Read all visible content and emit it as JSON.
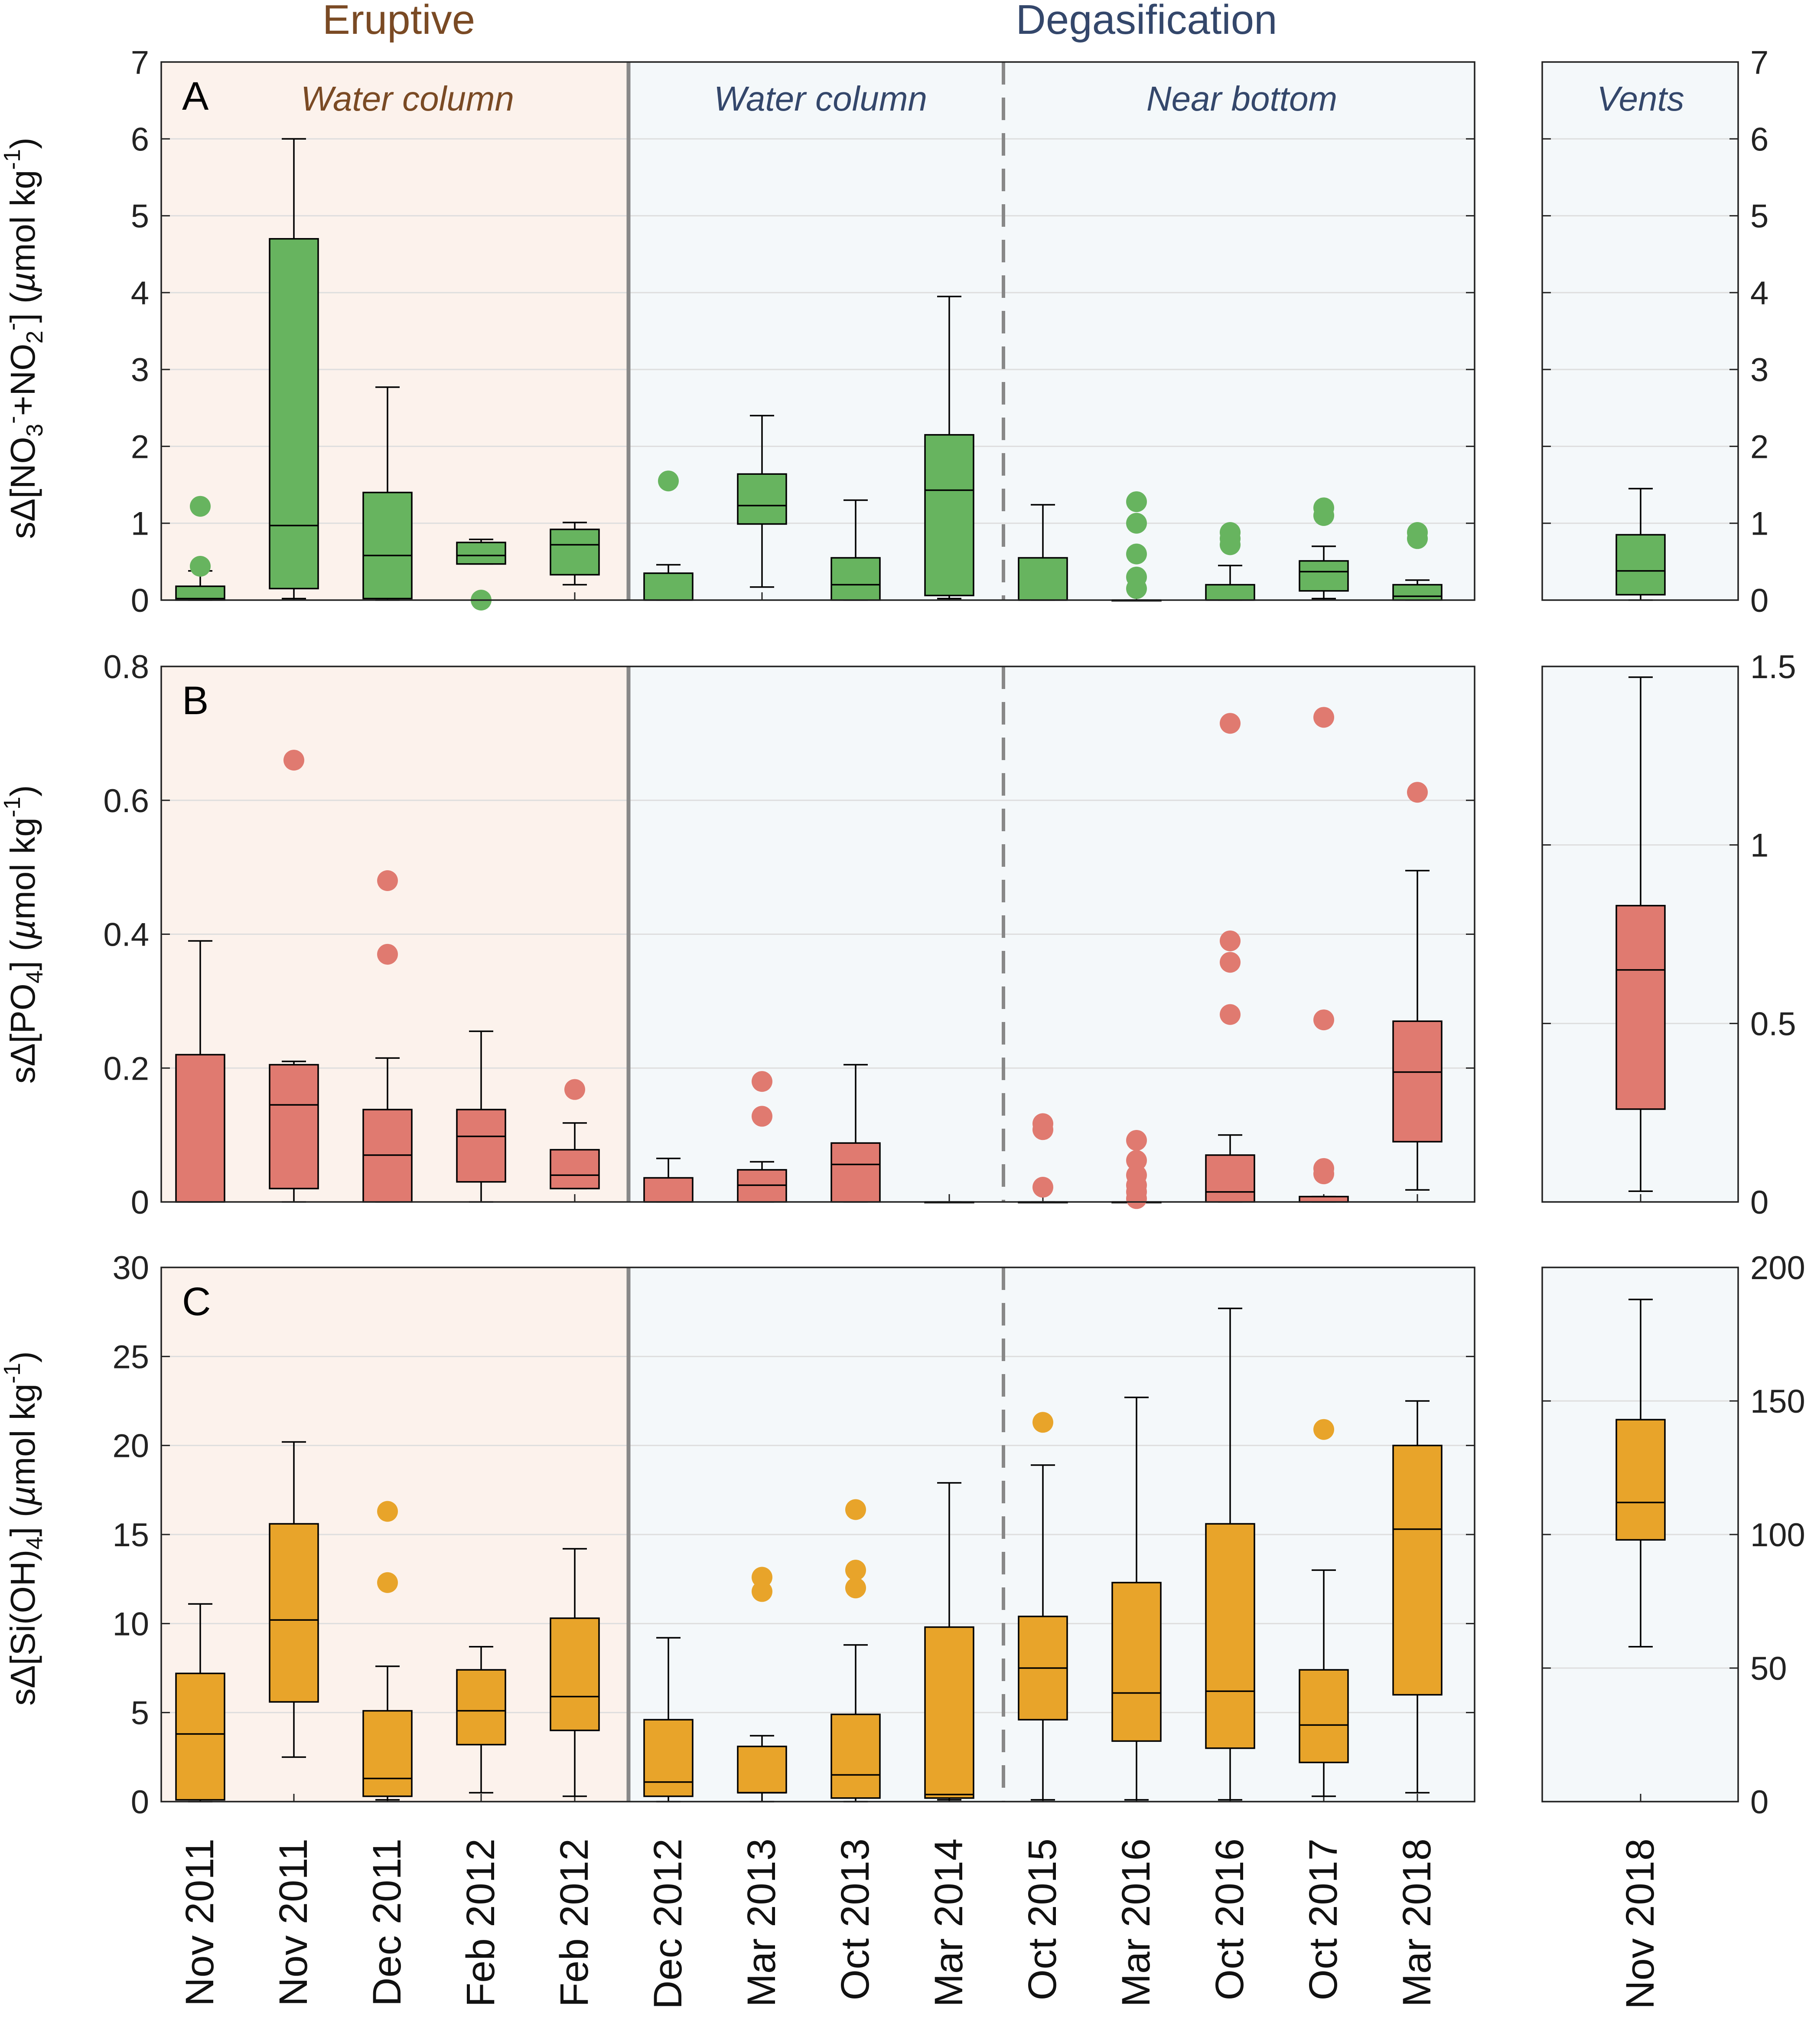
{
  "colors": {
    "eruptive_bg": "#fcf2ec",
    "degas_bg": "#f4f8fa",
    "eruptive_text": "#7a4a24",
    "degas_text": "#34476b",
    "nitrate": "#67b45f",
    "phosphate": "#e07a70",
    "silicate": "#e8a42a",
    "grid": "#dedede",
    "axis": "#222222",
    "divider": "#888888"
  },
  "headers": {
    "eruptive": "Eruptive",
    "degasification": "Degasification"
  },
  "regions": {
    "water_column_eruptive": "Water column",
    "water_column_degas": "Water column",
    "near_bottom": "Near bottom",
    "vents": "Vents"
  },
  "categories": [
    "Nov 2011",
    "Nov 2011",
    "Dec 2011",
    "Feb 2012",
    "Feb 2012",
    "Dec 2012",
    "Mar 2013",
    "Oct 2013",
    "Mar 2014",
    "Oct 2015",
    "Mar 2016",
    "Oct 2016",
    "Oct 2017",
    "Mar 2018"
  ],
  "vent_category": "Nov 2018",
  "chart_data": [
    {
      "type": "box",
      "panel": "A",
      "ylabel": "sΔ[NO3⁻+NO2⁻] (µmol kg⁻¹)",
      "ylabel_parts": {
        "a": "sΔ[NO",
        "b": "3",
        "c": "-",
        "d": "+NO",
        "e": "2",
        "f": "-",
        "g": "] (",
        "h": "µ",
        "i": "mol kg",
        "j": "-1",
        "k": ")"
      },
      "ylim": [
        0,
        7
      ],
      "ticks": [
        0,
        1,
        2,
        3,
        4,
        5,
        6,
        7
      ],
      "tick_labels": [
        "0",
        "1",
        "2",
        "3",
        "4",
        "5",
        "6",
        "7"
      ],
      "boxes": [
        {
          "category": "Nov 2011",
          "min": 0,
          "q1": 0,
          "median": 0.02,
          "q3": 0.18,
          "max": 0.38,
          "outliers": [
            0.44,
            1.22
          ]
        },
        {
          "category": "Nov 2011",
          "min": 0.02,
          "q1": 0.15,
          "median": 0.97,
          "q3": 4.7,
          "max": 6.0,
          "outliers": []
        },
        {
          "category": "Dec 2011",
          "min": 0,
          "q1": 0.02,
          "median": 0.58,
          "q3": 1.4,
          "max": 2.77,
          "outliers": []
        },
        {
          "category": "Feb 2012",
          "min": 0.47,
          "q1": 0.47,
          "median": 0.58,
          "q3": 0.75,
          "max": 0.79,
          "outliers": [
            0.0
          ]
        },
        {
          "category": "Feb 2012",
          "min": 0.2,
          "q1": 0.33,
          "median": 0.72,
          "q3": 0.92,
          "max": 1.01,
          "outliers": []
        },
        {
          "category": "Dec 2012",
          "min": 0,
          "q1": 0,
          "median": 0,
          "q3": 0.35,
          "max": 0.46,
          "outliers": [
            1.55
          ]
        },
        {
          "category": "Mar 2013",
          "min": 0.17,
          "q1": 0.99,
          "median": 1.23,
          "q3": 1.64,
          "max": 2.4,
          "outliers": []
        },
        {
          "category": "Oct 2013",
          "min": 0,
          "q1": 0,
          "median": 0.2,
          "q3": 0.55,
          "max": 1.3,
          "outliers": []
        },
        {
          "category": "Mar 2014",
          "min": 0.02,
          "q1": 0.06,
          "median": 1.43,
          "q3": 2.15,
          "max": 3.95,
          "outliers": []
        },
        {
          "category": "Oct 2015",
          "min": 0,
          "q1": 0,
          "median": 0,
          "q3": 0.55,
          "max": 1.24,
          "outliers": []
        },
        {
          "category": "Mar 2016",
          "min": 0,
          "q1": 0,
          "median": 0,
          "q3": 0,
          "max": 0,
          "outliers": [
            0.15,
            0.3,
            0.6,
            1.0,
            1.28
          ]
        },
        {
          "category": "Oct 2016",
          "min": 0,
          "q1": 0,
          "median": 0,
          "q3": 0.2,
          "max": 0.45,
          "outliers": [
            0.72,
            0.8,
            0.88
          ]
        },
        {
          "category": "Oct 2017",
          "min": 0.02,
          "q1": 0.12,
          "median": 0.37,
          "q3": 0.51,
          "max": 0.7,
          "outliers": [
            1.1,
            1.2
          ]
        },
        {
          "category": "Mar 2018",
          "min": 0,
          "q1": 0,
          "median": 0.05,
          "q3": 0.2,
          "max": 0.26,
          "outliers": [
            0.8,
            0.88
          ]
        }
      ],
      "vent": {
        "ylim": [
          0,
          7
        ],
        "ticks": [
          0,
          1,
          2,
          3,
          4,
          5,
          6,
          7
        ],
        "tick_labels": [
          "0",
          "1",
          "2",
          "3",
          "4",
          "5",
          "6",
          "7"
        ],
        "box": {
          "category": "Nov 2018",
          "min": 0,
          "q1": 0.07,
          "median": 0.38,
          "q3": 0.85,
          "max": 1.45,
          "outliers": []
        }
      }
    },
    {
      "type": "box",
      "panel": "B",
      "ylabel": "sΔ[PO4] (µmol kg⁻¹)",
      "ylabel_parts": {
        "a": "sΔ[PO",
        "b": "4",
        "c": "] (",
        "d": "µ",
        "e": "mol kg",
        "f": "-1",
        "g": ")"
      },
      "ylim": [
        0,
        0.8
      ],
      "ticks": [
        0,
        0.2,
        0.4,
        0.6,
        0.8
      ],
      "tick_labels": [
        "0",
        "0.2",
        "0.4",
        "0.6",
        "0.8"
      ],
      "boxes": [
        {
          "category": "Nov 2011",
          "min": 0,
          "q1": 0,
          "median": 0,
          "q3": 0.22,
          "max": 0.39,
          "outliers": []
        },
        {
          "category": "Nov 2011",
          "min": 0,
          "q1": 0.02,
          "median": 0.145,
          "q3": 0.205,
          "max": 0.21,
          "outliers": [
            0.66
          ]
        },
        {
          "category": "Dec 2011",
          "min": 0,
          "q1": 0,
          "median": 0.07,
          "q3": 0.138,
          "max": 0.215,
          "outliers": [
            0.37,
            0.48
          ]
        },
        {
          "category": "Feb 2012",
          "min": 0,
          "q1": 0.03,
          "median": 0.098,
          "q3": 0.138,
          "max": 0.255,
          "outliers": []
        },
        {
          "category": "Feb 2012",
          "min": 0.02,
          "q1": 0.02,
          "median": 0.04,
          "q3": 0.078,
          "max": 0.118,
          "outliers": [
            0.168
          ]
        },
        {
          "category": "Dec 2012",
          "min": 0,
          "q1": 0,
          "median": 0,
          "q3": 0.036,
          "max": 0.065,
          "outliers": []
        },
        {
          "category": "Mar 2013",
          "min": 0,
          "q1": 0,
          "median": 0.025,
          "q3": 0.048,
          "max": 0.06,
          "outliers": [
            0.128,
            0.18
          ]
        },
        {
          "category": "Oct 2013",
          "min": 0,
          "q1": 0,
          "median": 0.056,
          "q3": 0.088,
          "max": 0.205,
          "outliers": []
        },
        {
          "category": "Mar 2014",
          "min": 0,
          "q1": 0,
          "median": 0,
          "q3": 0,
          "max": 0,
          "outliers": []
        },
        {
          "category": "Oct 2015",
          "min": 0,
          "q1": 0,
          "median": 0,
          "q3": 0,
          "max": 0,
          "outliers": [
            0.022,
            0.108,
            0.117
          ]
        },
        {
          "category": "Mar 2016",
          "min": 0,
          "q1": 0,
          "median": 0,
          "q3": 0,
          "max": 0,
          "outliers": [
            0.005,
            0.015,
            0.025,
            0.04,
            0.062,
            0.092
          ]
        },
        {
          "category": "Oct 2016",
          "min": 0,
          "q1": 0,
          "median": 0.015,
          "q3": 0.07,
          "max": 0.1,
          "outliers": [
            0.28,
            0.358,
            0.39,
            0.715
          ]
        },
        {
          "category": "Oct 2017",
          "min": 0,
          "q1": 0,
          "median": 0,
          "q3": 0.008,
          "max": 0.008,
          "outliers": [
            0.042,
            0.05,
            0.272,
            0.724
          ]
        },
        {
          "category": "Mar 2018",
          "min": 0.018,
          "q1": 0.09,
          "median": 0.194,
          "q3": 0.27,
          "max": 0.495,
          "outliers": [
            0.612
          ]
        }
      ],
      "vent": {
        "ylim": [
          0,
          1.5
        ],
        "ticks": [
          0,
          0.5,
          1,
          1.5
        ],
        "tick_labels": [
          "0",
          "0.5",
          "1",
          "1.5"
        ],
        "box": {
          "category": "Nov 2018",
          "min": 0.03,
          "q1": 0.26,
          "median": 0.65,
          "q3": 0.83,
          "max": 1.47,
          "outliers": []
        }
      }
    },
    {
      "type": "box",
      "panel": "C",
      "ylabel": "sΔ[Si(OH)4] (µmol kg⁻¹)",
      "ylabel_parts": {
        "a": "sΔ[Si(OH)",
        "b": "4",
        "c": "] (",
        "d": "µ",
        "e": "mol kg",
        "f": "-1",
        "g": ")"
      },
      "ylim": [
        0,
        30
      ],
      "ticks": [
        0,
        5,
        10,
        15,
        20,
        25,
        30
      ],
      "tick_labels": [
        "0",
        "5",
        "10",
        "15",
        "20",
        "25",
        "30"
      ],
      "boxes": [
        {
          "category": "Nov 2011",
          "min": 0,
          "q1": 0.1,
          "median": 3.8,
          "q3": 7.2,
          "max": 11.1,
          "outliers": []
        },
        {
          "category": "Nov 2011",
          "min": 2.5,
          "q1": 5.6,
          "median": 10.2,
          "q3": 15.6,
          "max": 20.2,
          "outliers": []
        },
        {
          "category": "Dec 2011",
          "min": 0.1,
          "q1": 0.3,
          "median": 1.3,
          "q3": 5.1,
          "max": 7.6,
          "outliers": [
            12.3,
            16.3
          ]
        },
        {
          "category": "Feb 2012",
          "min": 0.5,
          "q1": 3.2,
          "median": 5.1,
          "q3": 7.4,
          "max": 8.7,
          "outliers": []
        },
        {
          "category": "Feb 2012",
          "min": 0.3,
          "q1": 4.0,
          "median": 5.9,
          "q3": 10.3,
          "max": 14.2,
          "outliers": []
        },
        {
          "category": "Dec 2012",
          "min": 0,
          "q1": 0.3,
          "median": 1.1,
          "q3": 4.6,
          "max": 9.2,
          "outliers": []
        },
        {
          "category": "Mar 2013",
          "min": 0,
          "q1": 0.5,
          "median": 0.5,
          "q3": 3.1,
          "max": 3.7,
          "outliers": [
            11.8,
            12.6
          ]
        },
        {
          "category": "Oct 2013",
          "min": 0,
          "q1": 0.2,
          "median": 1.5,
          "q3": 4.9,
          "max": 8.8,
          "outliers": [
            12.0,
            13.0,
            16.4
          ]
        },
        {
          "category": "Mar 2014",
          "min": 0.1,
          "q1": 0.2,
          "median": 0.4,
          "q3": 9.8,
          "max": 17.9,
          "outliers": []
        },
        {
          "category": "Oct 2015",
          "min": 0.1,
          "q1": 4.6,
          "median": 7.5,
          "q3": 10.4,
          "max": 18.9,
          "outliers": [
            21.3
          ]
        },
        {
          "category": "Mar 2016",
          "min": 0.1,
          "q1": 3.4,
          "median": 6.1,
          "q3": 12.3,
          "max": 22.7,
          "outliers": []
        },
        {
          "category": "Oct 2016",
          "min": 0.1,
          "q1": 3.0,
          "median": 6.2,
          "q3": 15.6,
          "max": 27.7,
          "outliers": []
        },
        {
          "category": "Oct 2017",
          "min": 0.3,
          "q1": 2.2,
          "median": 4.3,
          "q3": 7.4,
          "max": 13.0,
          "outliers": [
            20.9
          ]
        },
        {
          "category": "Mar 2018",
          "min": 0.5,
          "q1": 6.0,
          "median": 15.3,
          "q3": 20.0,
          "max": 22.5,
          "outliers": []
        }
      ],
      "vent": {
        "ylim": [
          0,
          200
        ],
        "ticks": [
          0,
          50,
          100,
          150,
          200
        ],
        "tick_labels": [
          "0",
          "50",
          "100",
          "150",
          "200"
        ],
        "box": {
          "category": "Nov 2018",
          "min": 58,
          "q1": 98,
          "median": 112,
          "q3": 143,
          "max": 188,
          "outliers": []
        }
      }
    }
  ]
}
